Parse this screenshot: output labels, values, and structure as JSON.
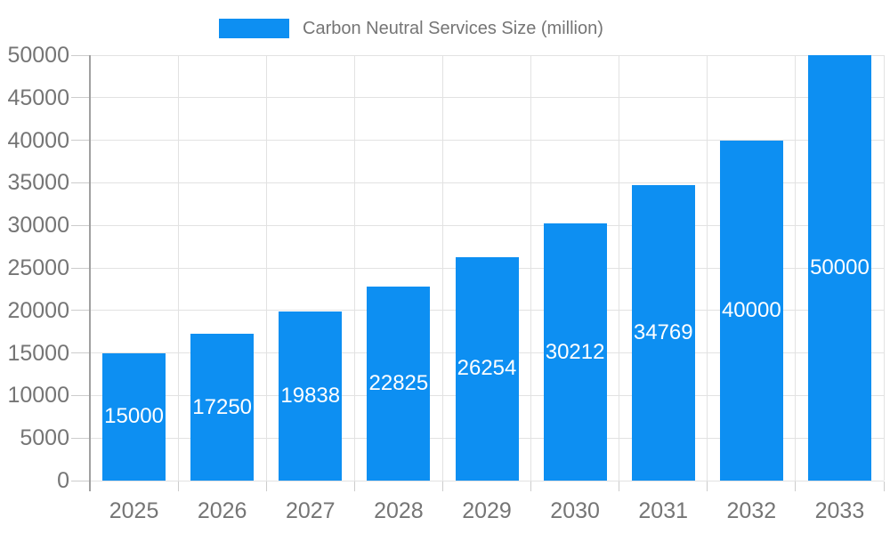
{
  "legend": {
    "swatch_color": "#0d8ff2",
    "label": "Carbon Neutral Services Size (million)"
  },
  "chart_data": {
    "type": "bar",
    "title": "Carbon Neutral Services Size (million)",
    "categories": [
      "2025",
      "2026",
      "2027",
      "2028",
      "2029",
      "2030",
      "2031",
      "2032",
      "2033"
    ],
    "values": [
      15000,
      17250,
      19838,
      22825,
      26254,
      30212,
      34769,
      40000,
      50000
    ],
    "series": [
      {
        "name": "Carbon Neutral Services Size (million)",
        "values": [
          15000,
          17250,
          19838,
          22825,
          26254,
          30212,
          34769,
          40000,
          50000
        ]
      }
    ],
    "xlabel": "",
    "ylabel": "",
    "ylim": [
      0,
      50000
    ],
    "ytick_step": 5000,
    "yticks": [
      0,
      5000,
      10000,
      15000,
      20000,
      25000,
      30000,
      35000,
      40000,
      45000,
      50000
    ],
    "grid": true,
    "legend_position": "top",
    "bar_color": "#0d8ff2",
    "bar_label_color": "#ffffff",
    "axis_text_color": "#757575"
  }
}
